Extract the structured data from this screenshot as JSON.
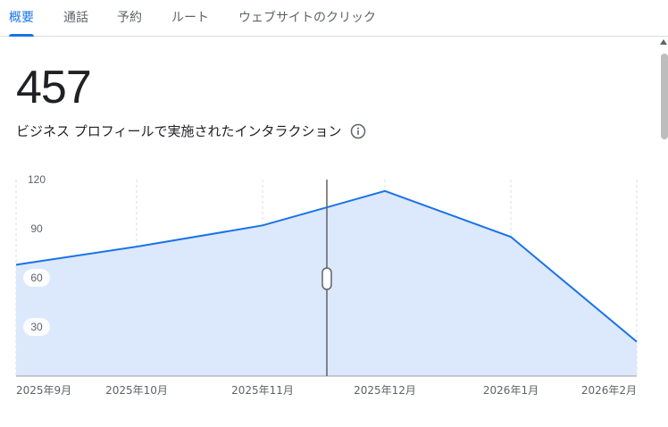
{
  "tabs": [
    {
      "label": "概要",
      "active": true
    },
    {
      "label": "通話",
      "active": false
    },
    {
      "label": "予約",
      "active": false
    },
    {
      "label": "ルート",
      "active": false
    },
    {
      "label": "ウェブサイトのクリック",
      "active": false
    }
  ],
  "summary": {
    "total": "457",
    "label": "ビジネス プロフィールで実施されたインタラクション"
  },
  "icons": {
    "info": "info-icon"
  },
  "colors": {
    "accent": "#1a73e8",
    "area_fill": "#dce8fb",
    "text": "#202124"
  },
  "chart_data": {
    "type": "area",
    "categories": [
      "2025年9月",
      "2025年10月",
      "2025年11月",
      "2025年12月",
      "2026年1月",
      "2026年2月"
    ],
    "values": [
      68,
      79,
      92,
      113,
      85,
      21
    ],
    "ylim": [
      0,
      120
    ],
    "yticks": [
      30,
      60,
      90,
      120
    ],
    "grid": "vertical-dashed",
    "cursor_position_between": [
      "2025年11月",
      "2025年12月"
    ]
  }
}
